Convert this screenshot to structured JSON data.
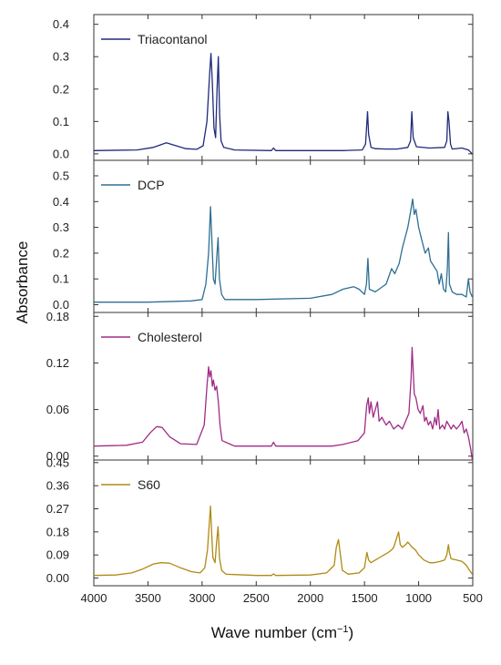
{
  "chart_data": {
    "type": "line",
    "layout": "stacked-panels",
    "ylabel": "Absorbance",
    "xlabel": "Wave number (cm⁻¹)",
    "xlim": [
      4000,
      500
    ],
    "x_reversed": true,
    "x_ticks": [
      4000,
      3500,
      3000,
      2500,
      2000,
      1500,
      1000,
      500
    ],
    "x_tick_labels": [
      "4000",
      "3500",
      "3000",
      "2500",
      "2000",
      "1500",
      "1000",
      "500"
    ],
    "grid": false,
    "panels": [
      {
        "name": "Triacontanol",
        "color": "#1f2a7a",
        "ylim": [
          -0.02,
          0.43
        ],
        "y_ticks": [
          0.0,
          0.1,
          0.2,
          0.3,
          0.4
        ],
        "y_tick_labels": [
          "0.0",
          "0.1",
          "0.2",
          "0.3",
          "0.4"
        ],
        "baseline": 0.01,
        "points": [
          [
            4000,
            0.01
          ],
          [
            3600,
            0.012
          ],
          [
            3450,
            0.02
          ],
          [
            3330,
            0.034
          ],
          [
            3250,
            0.026
          ],
          [
            3150,
            0.016
          ],
          [
            3050,
            0.014
          ],
          [
            2990,
            0.025
          ],
          [
            2955,
            0.1
          ],
          [
            2930,
            0.25
          ],
          [
            2918,
            0.31
          ],
          [
            2905,
            0.22
          ],
          [
            2890,
            0.08
          ],
          [
            2875,
            0.05
          ],
          [
            2862,
            0.2
          ],
          [
            2850,
            0.3
          ],
          [
            2838,
            0.12
          ],
          [
            2825,
            0.04
          ],
          [
            2800,
            0.02
          ],
          [
            2700,
            0.012
          ],
          [
            2360,
            0.01
          ],
          [
            2340,
            0.018
          ],
          [
            2320,
            0.01
          ],
          [
            1700,
            0.01
          ],
          [
            1520,
            0.012
          ],
          [
            1490,
            0.03
          ],
          [
            1472,
            0.13
          ],
          [
            1462,
            0.06
          ],
          [
            1440,
            0.02
          ],
          [
            1400,
            0.016
          ],
          [
            1300,
            0.015
          ],
          [
            1200,
            0.015
          ],
          [
            1100,
            0.02
          ],
          [
            1075,
            0.04
          ],
          [
            1063,
            0.13
          ],
          [
            1050,
            0.05
          ],
          [
            1020,
            0.022
          ],
          [
            900,
            0.018
          ],
          [
            760,
            0.02
          ],
          [
            740,
            0.04
          ],
          [
            730,
            0.13
          ],
          [
            720,
            0.1
          ],
          [
            705,
            0.03
          ],
          [
            690,
            0.015
          ],
          [
            600,
            0.018
          ],
          [
            540,
            0.012
          ],
          [
            505,
            0.0
          ]
        ]
      },
      {
        "name": "DCP",
        "color": "#2e6f93",
        "ylim": [
          -0.03,
          0.56
        ],
        "y_ticks": [
          0.0,
          0.1,
          0.2,
          0.3,
          0.4,
          0.5
        ],
        "y_tick_labels": [
          "0.0",
          "0.1",
          "0.2",
          "0.3",
          "0.4",
          "0.5"
        ],
        "baseline": 0.01,
        "points": [
          [
            4000,
            0.01
          ],
          [
            3500,
            0.01
          ],
          [
            3100,
            0.015
          ],
          [
            3000,
            0.02
          ],
          [
            2965,
            0.08
          ],
          [
            2940,
            0.2
          ],
          [
            2922,
            0.38
          ],
          [
            2910,
            0.25
          ],
          [
            2895,
            0.1
          ],
          [
            2880,
            0.08
          ],
          [
            2865,
            0.18
          ],
          [
            2852,
            0.26
          ],
          [
            2840,
            0.1
          ],
          [
            2820,
            0.04
          ],
          [
            2790,
            0.02
          ],
          [
            2500,
            0.02
          ],
          [
            2000,
            0.025
          ],
          [
            1800,
            0.04
          ],
          [
            1700,
            0.06
          ],
          [
            1600,
            0.07
          ],
          [
            1550,
            0.06
          ],
          [
            1500,
            0.04
          ],
          [
            1482,
            0.08
          ],
          [
            1468,
            0.18
          ],
          [
            1455,
            0.06
          ],
          [
            1400,
            0.05
          ],
          [
            1300,
            0.08
          ],
          [
            1250,
            0.14
          ],
          [
            1220,
            0.12
          ],
          [
            1180,
            0.16
          ],
          [
            1150,
            0.22
          ],
          [
            1100,
            0.3
          ],
          [
            1075,
            0.36
          ],
          [
            1055,
            0.41
          ],
          [
            1040,
            0.35
          ],
          [
            1025,
            0.37
          ],
          [
            1000,
            0.3
          ],
          [
            970,
            0.25
          ],
          [
            940,
            0.2
          ],
          [
            910,
            0.22
          ],
          [
            890,
            0.17
          ],
          [
            860,
            0.15
          ],
          [
            830,
            0.13
          ],
          [
            810,
            0.08
          ],
          [
            790,
            0.12
          ],
          [
            770,
            0.06
          ],
          [
            750,
            0.05
          ],
          [
            735,
            0.14
          ],
          [
            725,
            0.28
          ],
          [
            715,
            0.08
          ],
          [
            690,
            0.05
          ],
          [
            650,
            0.04
          ],
          [
            600,
            0.04
          ],
          [
            560,
            0.03
          ],
          [
            540,
            0.1
          ],
          [
            525,
            0.05
          ],
          [
            505,
            0.03
          ]
        ]
      },
      {
        "name": "Cholesterol",
        "color": "#a12b86",
        "ylim": [
          -0.005,
          0.185
        ],
        "y_ticks": [
          0.0,
          0.06,
          0.12,
          0.18
        ],
        "y_tick_labels": [
          "0.00",
          "0.06",
          "0.12",
          "0.18"
        ],
        "baseline": 0.013,
        "points": [
          [
            4000,
            0.013
          ],
          [
            3700,
            0.014
          ],
          [
            3550,
            0.018
          ],
          [
            3480,
            0.03
          ],
          [
            3420,
            0.038
          ],
          [
            3370,
            0.037
          ],
          [
            3300,
            0.025
          ],
          [
            3200,
            0.016
          ],
          [
            3050,
            0.015
          ],
          [
            2980,
            0.04
          ],
          [
            2955,
            0.09
          ],
          [
            2940,
            0.115
          ],
          [
            2930,
            0.102
          ],
          [
            2918,
            0.11
          ],
          [
            2905,
            0.09
          ],
          [
            2895,
            0.098
          ],
          [
            2880,
            0.085
          ],
          [
            2866,
            0.09
          ],
          [
            2850,
            0.07
          ],
          [
            2835,
            0.04
          ],
          [
            2815,
            0.02
          ],
          [
            2700,
            0.013
          ],
          [
            2360,
            0.013
          ],
          [
            2340,
            0.018
          ],
          [
            2320,
            0.013
          ],
          [
            1800,
            0.013
          ],
          [
            1700,
            0.015
          ],
          [
            1560,
            0.02
          ],
          [
            1500,
            0.03
          ],
          [
            1480,
            0.065
          ],
          [
            1465,
            0.075
          ],
          [
            1455,
            0.055
          ],
          [
            1440,
            0.07
          ],
          [
            1420,
            0.05
          ],
          [
            1400,
            0.06
          ],
          [
            1380,
            0.07
          ],
          [
            1365,
            0.045
          ],
          [
            1340,
            0.05
          ],
          [
            1300,
            0.04
          ],
          [
            1270,
            0.045
          ],
          [
            1230,
            0.035
          ],
          [
            1190,
            0.04
          ],
          [
            1150,
            0.035
          ],
          [
            1120,
            0.045
          ],
          [
            1090,
            0.055
          ],
          [
            1070,
            0.1
          ],
          [
            1060,
            0.14
          ],
          [
            1050,
            0.11
          ],
          [
            1040,
            0.08
          ],
          [
            1025,
            0.075
          ],
          [
            1005,
            0.06
          ],
          [
            985,
            0.055
          ],
          [
            960,
            0.065
          ],
          [
            945,
            0.045
          ],
          [
            930,
            0.05
          ],
          [
            910,
            0.04
          ],
          [
            890,
            0.045
          ],
          [
            870,
            0.035
          ],
          [
            850,
            0.05
          ],
          [
            835,
            0.04
          ],
          [
            820,
            0.06
          ],
          [
            805,
            0.035
          ],
          [
            780,
            0.04
          ],
          [
            760,
            0.035
          ],
          [
            740,
            0.045
          ],
          [
            720,
            0.04
          ],
          [
            700,
            0.035
          ],
          [
            680,
            0.04
          ],
          [
            650,
            0.035
          ],
          [
            620,
            0.04
          ],
          [
            600,
            0.045
          ],
          [
            580,
            0.03
          ],
          [
            560,
            0.035
          ],
          [
            540,
            0.025
          ],
          [
            520,
            0.01
          ],
          [
            505,
            -0.004
          ]
        ]
      },
      {
        "name": "S60",
        "color": "#b08a12",
        "ylim": [
          -0.03,
          0.46
        ],
        "y_ticks": [
          0.0,
          0.09,
          0.18,
          0.27,
          0.36,
          0.45
        ],
        "y_tick_labels": [
          "0.00",
          "0.09",
          "0.18",
          "0.27",
          "0.36",
          "0.45"
        ],
        "baseline": 0.01,
        "points": [
          [
            4000,
            0.01
          ],
          [
            3800,
            0.012
          ],
          [
            3650,
            0.02
          ],
          [
            3550,
            0.035
          ],
          [
            3450,
            0.055
          ],
          [
            3380,
            0.06
          ],
          [
            3300,
            0.058
          ],
          [
            3200,
            0.04
          ],
          [
            3100,
            0.025
          ],
          [
            3020,
            0.02
          ],
          [
            2975,
            0.04
          ],
          [
            2950,
            0.11
          ],
          [
            2932,
            0.22
          ],
          [
            2922,
            0.28
          ],
          [
            2912,
            0.18
          ],
          [
            2900,
            0.08
          ],
          [
            2880,
            0.06
          ],
          [
            2866,
            0.14
          ],
          [
            2852,
            0.2
          ],
          [
            2840,
            0.08
          ],
          [
            2820,
            0.03
          ],
          [
            2780,
            0.015
          ],
          [
            2500,
            0.01
          ],
          [
            2360,
            0.01
          ],
          [
            2340,
            0.016
          ],
          [
            2320,
            0.01
          ],
          [
            2000,
            0.012
          ],
          [
            1850,
            0.02
          ],
          [
            1780,
            0.05
          ],
          [
            1760,
            0.12
          ],
          [
            1740,
            0.15
          ],
          [
            1725,
            0.1
          ],
          [
            1705,
            0.03
          ],
          [
            1650,
            0.015
          ],
          [
            1550,
            0.02
          ],
          [
            1500,
            0.04
          ],
          [
            1478,
            0.1
          ],
          [
            1462,
            0.07
          ],
          [
            1440,
            0.06
          ],
          [
            1400,
            0.07
          ],
          [
            1360,
            0.08
          ],
          [
            1320,
            0.09
          ],
          [
            1280,
            0.1
          ],
          [
            1250,
            0.11
          ],
          [
            1230,
            0.12
          ],
          [
            1200,
            0.16
          ],
          [
            1185,
            0.18
          ],
          [
            1170,
            0.13
          ],
          [
            1150,
            0.12
          ],
          [
            1120,
            0.13
          ],
          [
            1100,
            0.14
          ],
          [
            1080,
            0.13
          ],
          [
            1060,
            0.12
          ],
          [
            1030,
            0.11
          ],
          [
            1000,
            0.09
          ],
          [
            950,
            0.07
          ],
          [
            900,
            0.06
          ],
          [
            860,
            0.06
          ],
          [
            800,
            0.065
          ],
          [
            760,
            0.07
          ],
          [
            740,
            0.09
          ],
          [
            725,
            0.13
          ],
          [
            715,
            0.1
          ],
          [
            700,
            0.075
          ],
          [
            650,
            0.07
          ],
          [
            600,
            0.065
          ],
          [
            560,
            0.05
          ],
          [
            530,
            0.03
          ],
          [
            505,
            0.015
          ]
        ]
      }
    ]
  }
}
